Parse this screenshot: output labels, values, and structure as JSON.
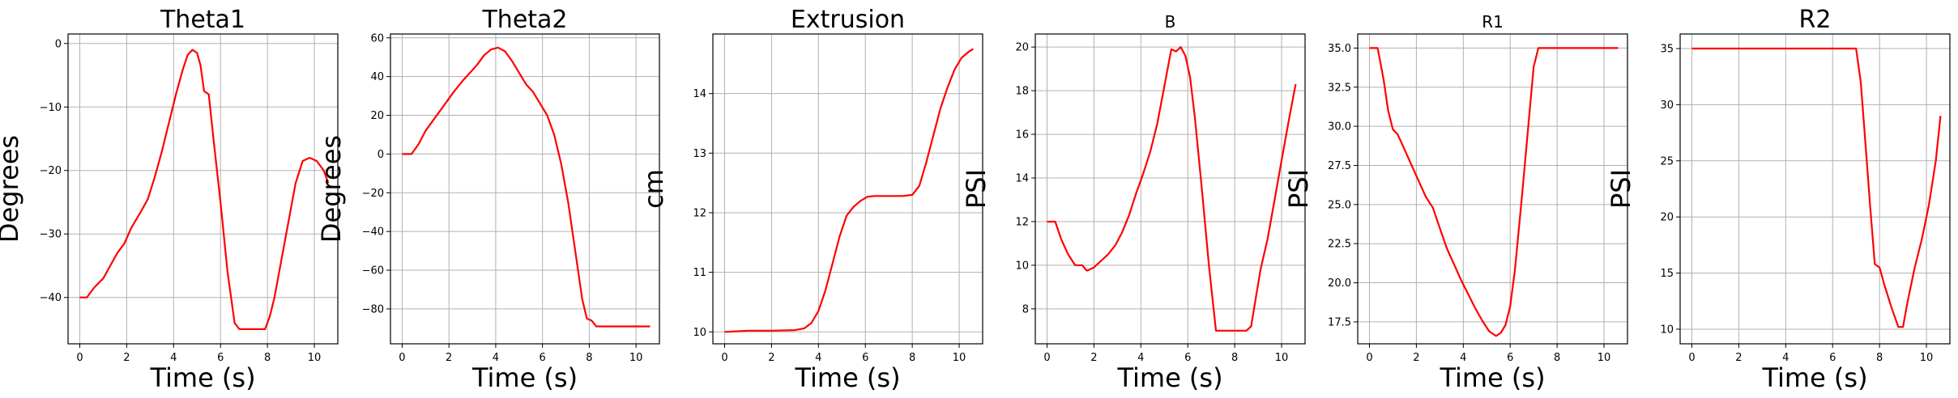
{
  "chart_data": [
    {
      "type": "line",
      "title": "Theta1",
      "xlabel": "Time (s)",
      "ylabel": "Degrees",
      "xlim": [
        -0.5,
        11.0
      ],
      "ylim": [
        -47.3,
        1.5
      ],
      "xticks": [
        0,
        2,
        4,
        6,
        8,
        10
      ],
      "yticks": [
        -40,
        -30,
        -20,
        -10,
        0
      ],
      "grid": true,
      "series": [
        {
          "color": "#ff0000",
          "x": [
            0,
            0.3,
            0.6,
            1.0,
            1.3,
            1.6,
            1.9,
            2.2,
            2.6,
            2.9,
            3.2,
            3.5,
            3.8,
            4.1,
            4.4,
            4.6,
            4.8,
            5.0,
            5.15,
            5.3,
            5.5,
            5.7,
            6.0,
            6.3,
            6.6,
            6.8,
            7.0,
            7.5,
            7.9,
            8.1,
            8.3,
            8.6,
            8.9,
            9.2,
            9.5,
            9.8,
            10.1,
            10.4,
            10.6
          ],
          "y": [
            -40,
            -40,
            -38.5,
            -37,
            -35,
            -33,
            -31.5,
            -29,
            -26.5,
            -24.5,
            -21,
            -17,
            -12.5,
            -8,
            -4,
            -1.8,
            -1,
            -1.5,
            -3.5,
            -7.5,
            -8,
            -15,
            -25,
            -36,
            -44,
            -45,
            -45,
            -45,
            -45,
            -43,
            -40,
            -34,
            -28,
            -22,
            -18.5,
            -18,
            -18.5,
            -20,
            -22
          ]
        }
      ]
    },
    {
      "type": "line",
      "title": "Theta2",
      "xlabel": "Time (s)",
      "ylabel": "Degrees",
      "xlim": [
        -0.5,
        11.0
      ],
      "ylim": [
        -98,
        62
      ],
      "xticks": [
        0,
        2,
        4,
        6,
        8,
        10
      ],
      "yticks": [
        -80,
        -60,
        -40,
        -20,
        0,
        20,
        40,
        60
      ],
      "grid": true,
      "series": [
        {
          "color": "#ff0000",
          "x": [
            0,
            0.4,
            0.7,
            1.0,
            1.3,
            1.6,
            1.9,
            2.2,
            2.6,
            2.9,
            3.2,
            3.5,
            3.8,
            4.1,
            4.4,
            4.7,
            5.0,
            5.3,
            5.6,
            5.9,
            6.2,
            6.5,
            6.8,
            7.1,
            7.4,
            7.7,
            7.9,
            8.1,
            8.3,
            8.6,
            9.0,
            9.5,
            10.0,
            10.6
          ],
          "y": [
            0,
            0,
            5,
            12,
            17,
            22,
            27,
            32,
            38,
            42,
            46,
            51,
            54,
            55,
            53,
            48,
            42,
            36,
            32,
            26,
            20,
            10,
            -5,
            -25,
            -50,
            -75,
            -85,
            -86,
            -89,
            -89,
            -89,
            -89,
            -89,
            -89
          ]
        }
      ]
    },
    {
      "type": "line",
      "title": "Extrusion",
      "xlabel": "Time (s)",
      "ylabel": "cm",
      "xlim": [
        -0.5,
        11.0
      ],
      "ylim": [
        9.8,
        15.0
      ],
      "xticks": [
        0,
        2,
        4,
        6,
        8,
        10
      ],
      "yticks": [
        10,
        11,
        12,
        13,
        14
      ],
      "grid": true,
      "series": [
        {
          "color": "#ff0000",
          "x": [
            0,
            1.0,
            2.0,
            3.0,
            3.4,
            3.7,
            4.0,
            4.3,
            4.6,
            4.9,
            5.2,
            5.5,
            5.8,
            6.1,
            6.4,
            6.8,
            7.2,
            7.6,
            8.0,
            8.3,
            8.6,
            8.9,
            9.2,
            9.5,
            9.8,
            10.1,
            10.4,
            10.6
          ],
          "y": [
            10.0,
            10.02,
            10.02,
            10.03,
            10.06,
            10.15,
            10.35,
            10.7,
            11.15,
            11.6,
            11.95,
            12.1,
            12.2,
            12.27,
            12.28,
            12.28,
            12.28,
            12.28,
            12.3,
            12.45,
            12.85,
            13.3,
            13.75,
            14.1,
            14.4,
            14.6,
            14.7,
            14.75
          ]
        }
      ]
    },
    {
      "type": "line",
      "title": "B",
      "xlabel": "Time (s)",
      "ylabel": "PSI",
      "xlim": [
        -0.5,
        11.0
      ],
      "ylim": [
        6.4,
        20.6
      ],
      "xticks": [
        0,
        2,
        4,
        6,
        8,
        10
      ],
      "yticks": [
        8,
        10,
        12,
        14,
        16,
        18,
        20
      ],
      "grid": true,
      "series": [
        {
          "color": "#ff0000",
          "x": [
            0,
            0.35,
            0.6,
            0.9,
            1.2,
            1.5,
            1.7,
            2.0,
            2.3,
            2.6,
            2.9,
            3.2,
            3.5,
            3.8,
            4.1,
            4.4,
            4.7,
            5.0,
            5.3,
            5.5,
            5.7,
            5.9,
            6.1,
            6.3,
            6.6,
            6.9,
            7.2,
            7.6,
            8.0,
            8.5,
            8.7,
            8.9,
            9.1,
            9.4,
            9.7,
            10.0,
            10.3,
            10.6
          ],
          "y": [
            12,
            12,
            11.2,
            10.5,
            10.0,
            10.0,
            9.75,
            9.9,
            10.2,
            10.5,
            10.9,
            11.5,
            12.3,
            13.3,
            14.2,
            15.2,
            16.5,
            18.2,
            19.9,
            19.8,
            20.0,
            19.6,
            18.6,
            16.8,
            13.5,
            10.0,
            7.0,
            7.0,
            7.0,
            7.0,
            7.2,
            8.5,
            9.8,
            11.2,
            13.0,
            14.8,
            16.6,
            18.3
          ]
        }
      ]
    },
    {
      "type": "line",
      "title": "R1",
      "xlabel": "Time (s)",
      "ylabel": "PSI",
      "xlim": [
        -0.5,
        11.0
      ],
      "ylim": [
        16.1,
        35.9
      ],
      "xticks": [
        0,
        2,
        4,
        6,
        8,
        10
      ],
      "yticks": [
        17.5,
        20.0,
        22.5,
        25.0,
        27.5,
        30.0,
        32.5,
        35.0
      ],
      "grid": true,
      "series": [
        {
          "color": "#ff0000",
          "x": [
            0,
            0.35,
            0.6,
            0.8,
            1.0,
            1.2,
            1.5,
            1.8,
            2.1,
            2.4,
            2.7,
            3.0,
            3.3,
            3.6,
            3.9,
            4.2,
            4.5,
            4.8,
            5.1,
            5.4,
            5.6,
            5.8,
            6.0,
            6.2,
            6.5,
            6.8,
            7.0,
            7.2,
            7.6,
            8.5,
            9.5,
            10.6
          ],
          "y": [
            35,
            35,
            33,
            31,
            29.8,
            29.5,
            28.5,
            27.5,
            26.5,
            25.5,
            24.8,
            23.5,
            22.2,
            21.2,
            20.2,
            19.3,
            18.4,
            17.6,
            16.9,
            16.6,
            16.8,
            17.3,
            18.5,
            20.8,
            25.5,
            30.5,
            33.8,
            35,
            35,
            35,
            35,
            35
          ]
        }
      ]
    },
    {
      "type": "line",
      "title": "R2",
      "xlabel": "Time (s)",
      "ylabel": "PSI",
      "xlim": [
        -0.5,
        11.0
      ],
      "ylim": [
        8.7,
        36.3
      ],
      "xticks": [
        0,
        2,
        4,
        6,
        8,
        10
      ],
      "yticks": [
        10,
        15,
        20,
        25,
        30,
        35
      ],
      "grid": true,
      "series": [
        {
          "color": "#ff0000",
          "x": [
            0,
            2.0,
            4.0,
            6.0,
            7.0,
            7.2,
            7.4,
            7.6,
            7.8,
            8.0,
            8.2,
            8.5,
            8.8,
            9.0,
            9.2,
            9.5,
            9.8,
            10.1,
            10.4,
            10.6
          ],
          "y": [
            35,
            35,
            35,
            35,
            35,
            32,
            26.5,
            21,
            15.8,
            15.5,
            14,
            12,
            10.2,
            10.2,
            12.5,
            15.5,
            18,
            21,
            25,
            29
          ]
        }
      ]
    }
  ]
}
